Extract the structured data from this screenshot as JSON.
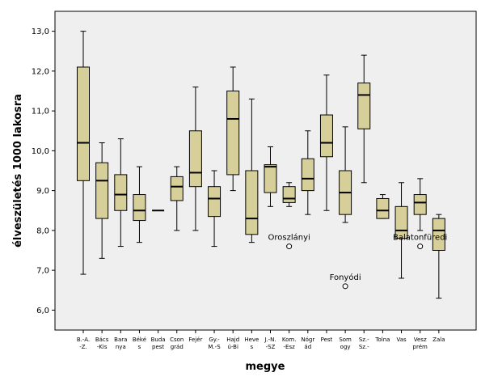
{
  "chart_data": {
    "type": "boxplot",
    "title": "",
    "xlabel": "megye",
    "ylabel": "élveszületés 1000 lakosra",
    "ylim": [
      5.5,
      13.5
    ],
    "yticks": [
      6.0,
      7.0,
      8.0,
      9.0,
      10.0,
      11.0,
      12.0,
      13.0
    ],
    "ytick_labels": [
      "6,0",
      "7,0",
      "8,0",
      "9,0",
      "10,0",
      "11,0",
      "12,0",
      "13,0"
    ],
    "colors": {
      "box_fill": "#d6cf9a",
      "plot_bg": "#efefef",
      "page_bg": "#ffffff",
      "stroke": "#000000"
    },
    "categories": [
      [
        "B.-A.",
        "-Z."
      ],
      [
        "Bács",
        "-Kis"
      ],
      [
        "Bara",
        "nya"
      ],
      [
        "Béké",
        "s"
      ],
      [
        "Buda",
        "pest"
      ],
      [
        "Cson",
        "grád"
      ],
      [
        "Fejér"
      ],
      [
        "Gy.-",
        "M.-S"
      ],
      [
        "Hajd",
        "ú-Bi"
      ],
      [
        "Heve",
        "s"
      ],
      [
        "J.-N.",
        "-SZ"
      ],
      [
        "Kom.",
        "-Esz"
      ],
      [
        "Nógr",
        "ád"
      ],
      [
        "Pest"
      ],
      [
        "Som",
        "ogy"
      ],
      [
        "Sz.-",
        "Sz.-"
      ],
      [
        "Tolna"
      ],
      [
        "Vas"
      ],
      [
        "Vesz",
        "prém"
      ],
      [
        "Zala"
      ]
    ],
    "series": [
      {
        "min": 6.9,
        "q1": 9.25,
        "median": 10.2,
        "q3": 12.1,
        "max": 13.0
      },
      {
        "min": 7.3,
        "q1": 8.3,
        "median": 9.25,
        "q3": 9.7,
        "max": 10.2
      },
      {
        "min": 7.6,
        "q1": 8.5,
        "median": 8.9,
        "q3": 9.4,
        "max": 10.3
      },
      {
        "min": 7.7,
        "q1": 8.25,
        "median": 8.5,
        "q3": 8.9,
        "max": 9.6
      },
      {
        "min": 8.5,
        "q1": 8.5,
        "median": 8.5,
        "q3": 8.5,
        "max": 8.5
      },
      {
        "min": 8.0,
        "q1": 8.75,
        "median": 9.1,
        "q3": 9.35,
        "max": 9.6
      },
      {
        "min": 8.0,
        "q1": 9.1,
        "median": 9.45,
        "q3": 10.5,
        "max": 11.6
      },
      {
        "min": 7.6,
        "q1": 8.35,
        "median": 8.8,
        "q3": 9.1,
        "max": 9.5
      },
      {
        "min": 9.0,
        "q1": 9.4,
        "median": 10.8,
        "q3": 11.5,
        "max": 12.1
      },
      {
        "min": 7.7,
        "q1": 7.9,
        "median": 8.3,
        "q3": 9.5,
        "max": 11.3
      },
      {
        "min": 8.6,
        "q1": 8.95,
        "median": 9.6,
        "q3": 9.65,
        "max": 10.1
      },
      {
        "min": 8.6,
        "q1": 8.7,
        "median": 8.8,
        "q3": 9.1,
        "max": 9.2
      },
      {
        "min": 8.4,
        "q1": 9.0,
        "median": 9.3,
        "q3": 9.8,
        "max": 10.5
      },
      {
        "min": 8.5,
        "q1": 9.85,
        "median": 10.2,
        "q3": 10.9,
        "max": 11.9
      },
      {
        "min": 8.2,
        "q1": 8.4,
        "median": 8.95,
        "q3": 9.5,
        "max": 10.6
      },
      {
        "min": 9.2,
        "q1": 10.55,
        "median": 11.4,
        "q3": 11.7,
        "max": 12.4
      },
      {
        "min": 8.3,
        "q1": 8.3,
        "median": 8.5,
        "q3": 8.8,
        "max": 8.9
      },
      {
        "min": 6.8,
        "q1": 7.8,
        "median": 8.0,
        "q3": 8.6,
        "max": 9.2
      },
      {
        "min": 8.0,
        "q1": 8.4,
        "median": 8.7,
        "q3": 8.9,
        "max": 9.3
      },
      {
        "min": 6.3,
        "q1": 7.5,
        "median": 8.0,
        "q3": 8.3,
        "max": 8.4
      }
    ],
    "outliers": [
      {
        "category_index": 11,
        "value": 7.6,
        "label": "Oroszlányi"
      },
      {
        "category_index": 14,
        "value": 6.6,
        "label": "Fonyódi"
      },
      {
        "category_index": 18,
        "value": 7.6,
        "label": "Balatonfüredi"
      }
    ]
  }
}
